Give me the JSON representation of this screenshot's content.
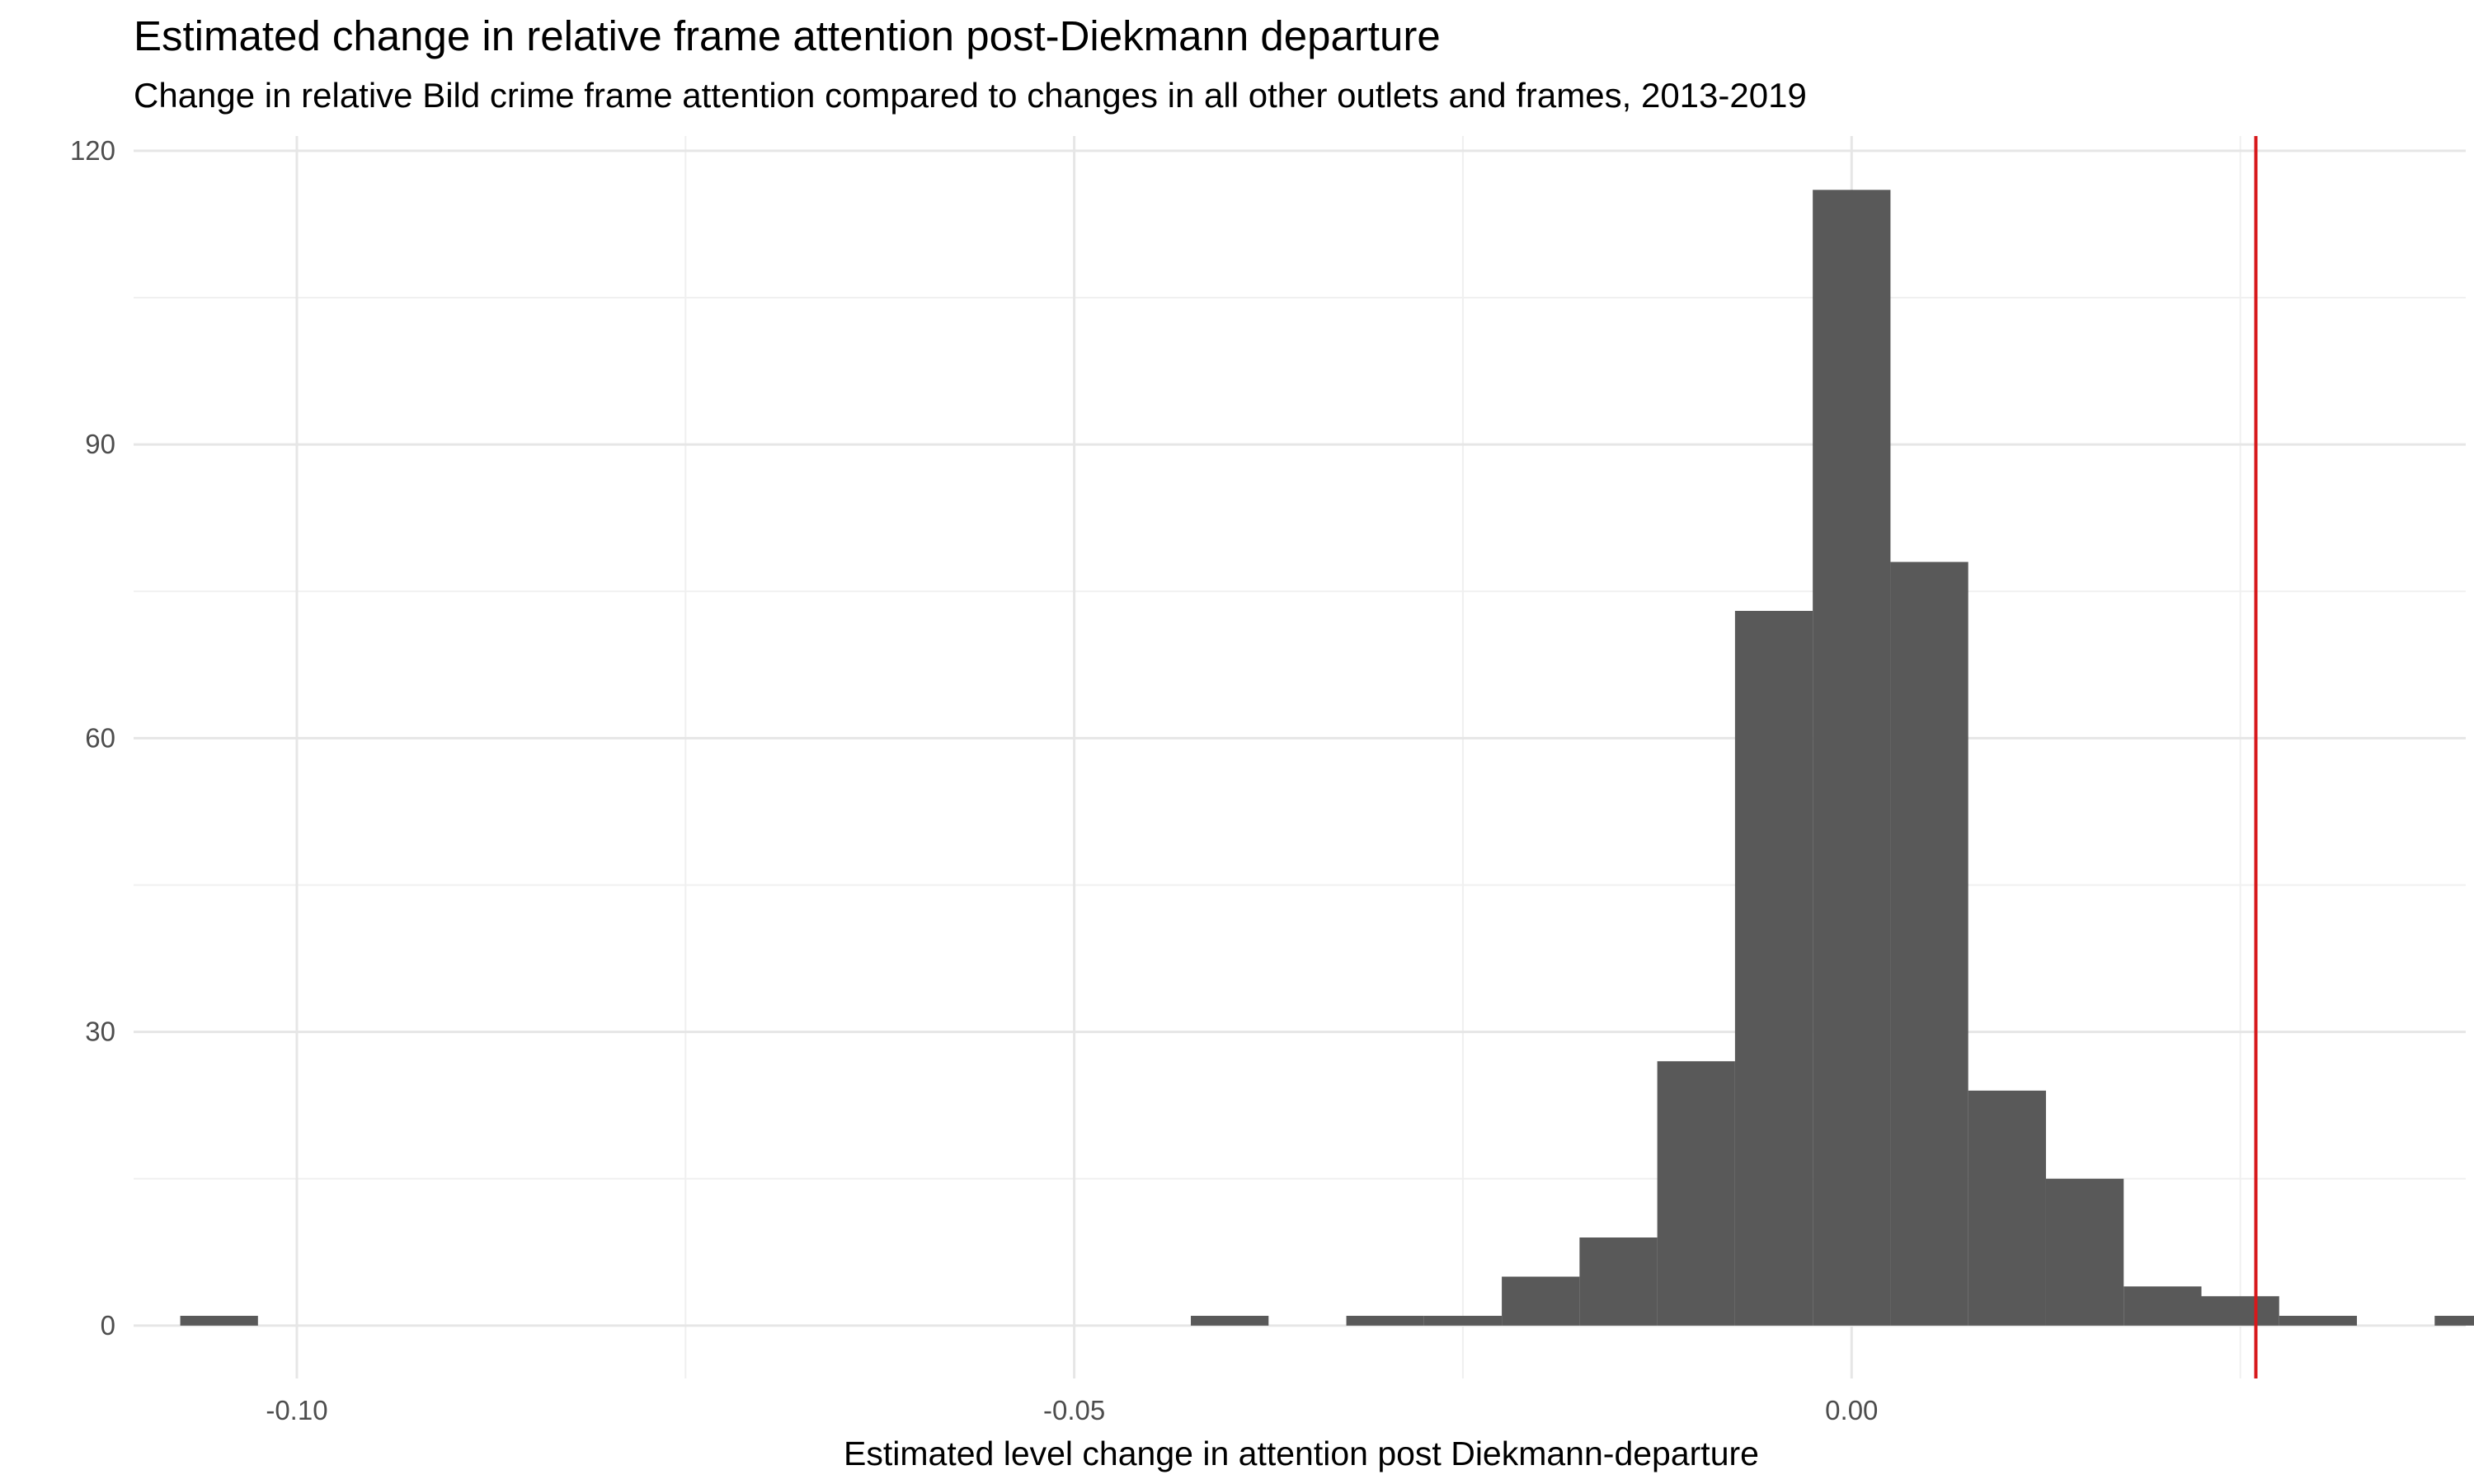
{
  "chart_data": {
    "type": "bar",
    "title": "Estimated change in relative frame attention post-Diekmann departure",
    "subtitle": "Change in relative Bild crime frame attention compared to changes in all other outlets and frames, 2013-2019",
    "xlabel": "Estimated level change in attention post Diekmann-departure",
    "ylabel": "",
    "xlim": [
      -0.1105,
      0.0395
    ],
    "ylim": [
      -5.4,
      121.5
    ],
    "x_ticks": [
      -0.1,
      -0.05,
      0.0
    ],
    "x_tick_labels": [
      "-0.10",
      "-0.05",
      "0.00"
    ],
    "y_ticks": [
      0,
      30,
      60,
      90,
      120
    ],
    "y_tick_labels": [
      "0",
      "30",
      "60",
      "90",
      "120"
    ],
    "grid": true,
    "bin_width": 0.005,
    "bins": [
      {
        "x_start": -0.1075,
        "x_end": -0.1025,
        "count": 1
      },
      {
        "x_start": -0.0425,
        "x_end": -0.0375,
        "count": 1
      },
      {
        "x_start": -0.0325,
        "x_end": -0.0275,
        "count": 1
      },
      {
        "x_start": -0.0275,
        "x_end": -0.0225,
        "count": 1
      },
      {
        "x_start": -0.0225,
        "x_end": -0.0175,
        "count": 5
      },
      {
        "x_start": -0.0175,
        "x_end": -0.0125,
        "count": 9
      },
      {
        "x_start": -0.0125,
        "x_end": -0.0075,
        "count": 27
      },
      {
        "x_start": -0.0075,
        "x_end": -0.0025,
        "count": 73
      },
      {
        "x_start": -0.0025,
        "x_end": 0.0025,
        "count": 116
      },
      {
        "x_start": 0.0025,
        "x_end": 0.0075,
        "count": 78
      },
      {
        "x_start": 0.0075,
        "x_end": 0.0125,
        "count": 24
      },
      {
        "x_start": 0.0125,
        "x_end": 0.0175,
        "count": 15
      },
      {
        "x_start": 0.0175,
        "x_end": 0.0225,
        "count": 4
      },
      {
        "x_start": 0.0225,
        "x_end": 0.0275,
        "count": 3
      },
      {
        "x_start": 0.0275,
        "x_end": 0.0325,
        "count": 1
      },
      {
        "x_start": 0.0375,
        "x_end": 0.0425,
        "count": 1
      }
    ],
    "reference_line": {
      "x": 0.026,
      "color": "#d7191c"
    },
    "bar_color": "#595959"
  }
}
